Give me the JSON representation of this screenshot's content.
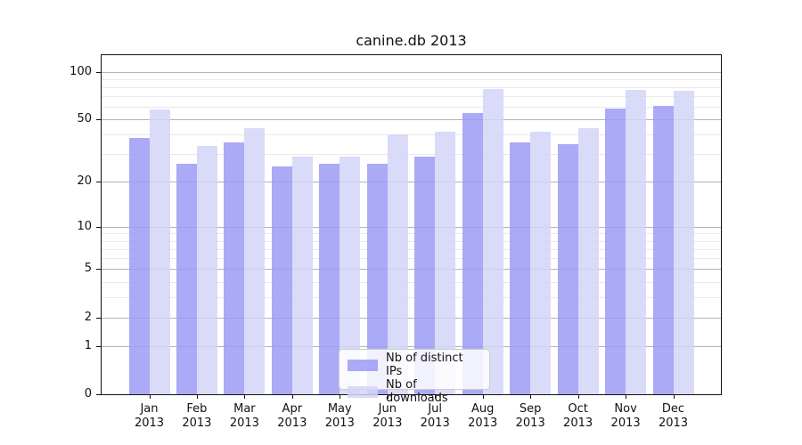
{
  "chart_data": {
    "type": "bar",
    "title": "canine.db 2013",
    "categories": [
      "Jan 2013",
      "Feb 2013",
      "Mar 2013",
      "Apr 2013",
      "May 2013",
      "Jun 2013",
      "Jul 2013",
      "Aug 2013",
      "Sep 2013",
      "Oct 2013",
      "Nov 2013",
      "Dec 2013"
    ],
    "series": [
      {
        "name": "Nb of distinct IPs",
        "color": "#9b9bf4",
        "values": [
          38,
          26,
          36,
          25,
          26,
          26,
          29,
          55,
          36,
          35,
          59,
          61
        ]
      },
      {
        "name": "Nb of downloads",
        "color": "#d3d3f8",
        "values": [
          58,
          34,
          44,
          29,
          29,
          40,
          42,
          78,
          42,
          44,
          77,
          76
        ]
      }
    ],
    "yscale": "log1p",
    "yticks": [
      0,
      1,
      2,
      5,
      10,
      20,
      50,
      100
    ],
    "minor_yticks": [
      3,
      4,
      6,
      7,
      8,
      9,
      30,
      40,
      60,
      70,
      80,
      90
    ],
    "ylim": [
      0,
      127
    ],
    "grid": true,
    "legend_position": "lower center",
    "colors": {
      "major_grid": "#b3b3b3",
      "minor_grid": "#e9e9e9",
      "spine": "#111111",
      "text": "#111111",
      "legend_border": "#cccccc"
    }
  }
}
